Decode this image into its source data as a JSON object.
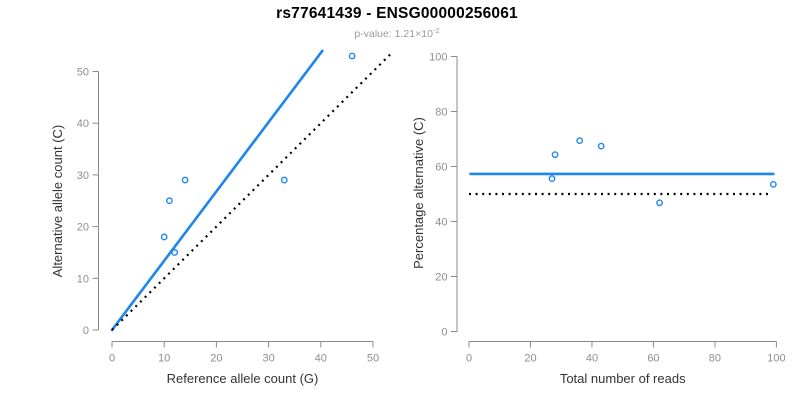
{
  "header": {
    "title": "rs77641439 - ENSG00000256061",
    "subtitle_prefix": "p-value: 1.21×10",
    "subtitle_exponent": "-2"
  },
  "colors": {
    "accent_blue": "#1C86EE",
    "axis_line_gray": "#8b8b8b",
    "tick_label_gray": "#8e8e8e",
    "axis_title_color": "#333333",
    "subtitle_gray": "#9b9b9b",
    "dotted_line_black": "#000000",
    "background": "#ffffff"
  },
  "chart_data": [
    {
      "type": "scatter",
      "panel": "left",
      "xlabel": "Reference allele count (G)",
      "ylabel": "Alternative allele count (C)",
      "xlim": [
        0,
        50
      ],
      "ylim": [
        0,
        50
      ],
      "xticks": [
        0,
        10,
        20,
        30,
        40,
        50
      ],
      "yticks": [
        0,
        10,
        20,
        30,
        40,
        50
      ],
      "points": [
        [
          10,
          18
        ],
        [
          11,
          25
        ],
        [
          12,
          15
        ],
        [
          14,
          29
        ],
        [
          33,
          29
        ],
        [
          46,
          53
        ]
      ],
      "lines": [
        {
          "name": "fitted-line",
          "style": "solid",
          "color": "#1C86EE",
          "x1": 0,
          "y1": 0,
          "x2": 40.3,
          "y2": 54.0
        },
        {
          "name": "identity-line",
          "style": "dotted",
          "color": "#000000",
          "x1": 0,
          "y1": 0,
          "x2": 53.5,
          "y2": 53.5
        }
      ],
      "grid": false,
      "legend": "none"
    },
    {
      "type": "scatter",
      "panel": "right",
      "xlabel": "Total number of reads",
      "ylabel": "Percentage alternative (C)",
      "xlim": [
        0,
        100
      ],
      "ylim": [
        0,
        100
      ],
      "xticks": [
        0,
        20,
        40,
        60,
        80,
        100
      ],
      "yticks": [
        0,
        20,
        40,
        60,
        80,
        100
      ],
      "points": [
        [
          27,
          55.6
        ],
        [
          28,
          64.3
        ],
        [
          36,
          69.4
        ],
        [
          43,
          67.4
        ],
        [
          62,
          46.8
        ],
        [
          99,
          53.5
        ]
      ],
      "lines": [
        {
          "name": "mean-percentage-line",
          "style": "solid",
          "color": "#1C86EE",
          "x1": 0.5,
          "y1": 57.3,
          "x2": 99,
          "y2": 57.3
        },
        {
          "name": "null-50pct-line",
          "style": "dotted",
          "color": "#000000",
          "x1": 0,
          "y1": 50,
          "x2": 97.5,
          "y2": 50
        }
      ],
      "grid": false,
      "legend": "none"
    }
  ]
}
